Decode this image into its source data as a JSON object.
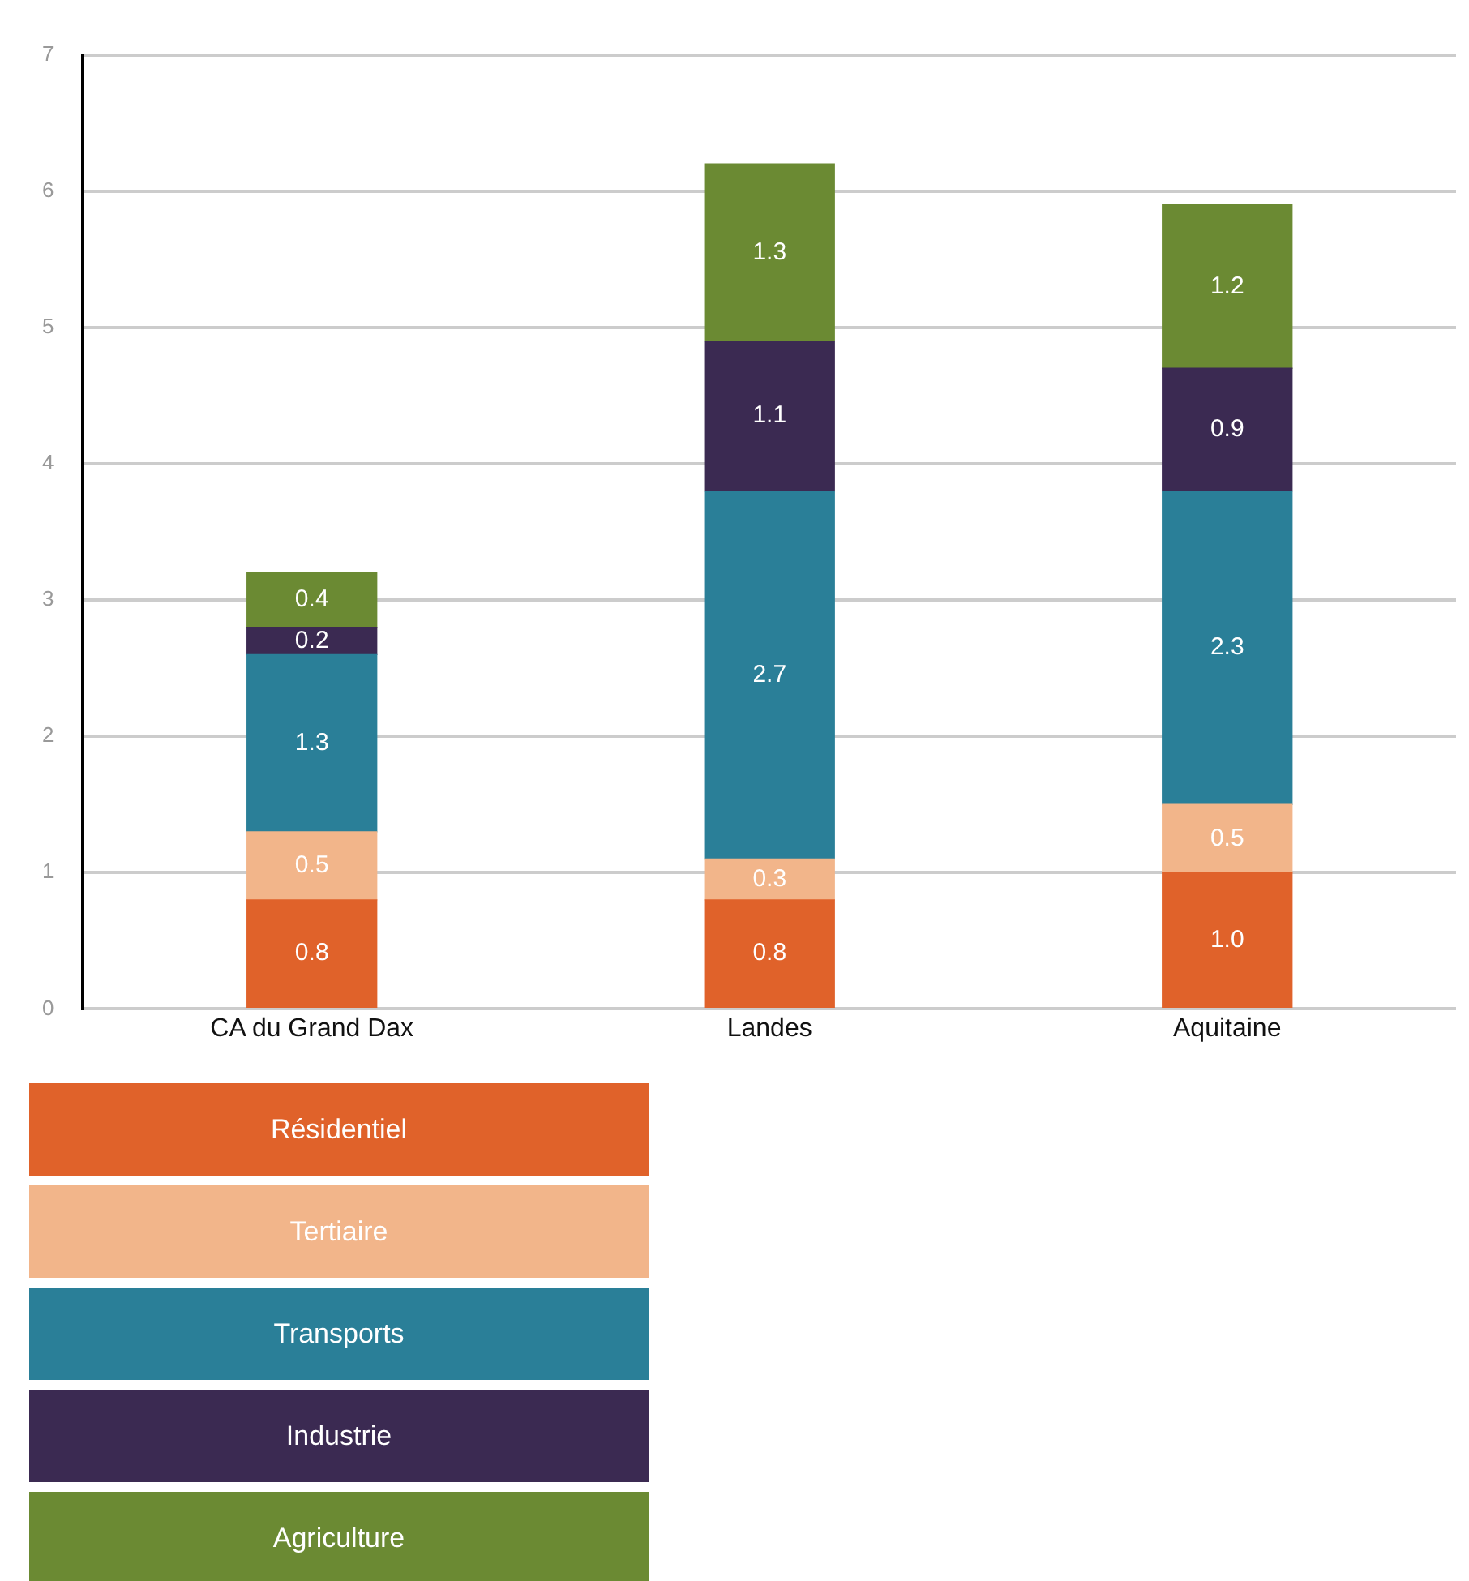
{
  "chart_data": {
    "type": "bar",
    "stacked": true,
    "categories": [
      "CA du Grand Dax",
      "Landes",
      "Aquitaine"
    ],
    "series": [
      {
        "name": "Résidentiel",
        "color": "#e0622a",
        "values": [
          0.8,
          0.8,
          1.0
        ],
        "value_labels": [
          "0.8",
          "0.8",
          "1.0"
        ]
      },
      {
        "name": "Tertiaire",
        "color": "#f2b58a",
        "values": [
          0.5,
          0.3,
          0.5
        ],
        "value_labels": [
          "0.5",
          "0.3",
          "0.5"
        ]
      },
      {
        "name": "Transports",
        "color": "#2a7f98",
        "values": [
          1.3,
          2.7,
          2.3
        ],
        "value_labels": [
          "1.3",
          "2.7",
          "2.3"
        ]
      },
      {
        "name": "Industrie",
        "color": "#3b2a52",
        "values": [
          0.2,
          1.1,
          0.9
        ],
        "value_labels": [
          "0.2",
          "1.1",
          "0.9"
        ]
      },
      {
        "name": "Agriculture",
        "color": "#6b8a33",
        "values": [
          0.4,
          1.3,
          1.2
        ],
        "value_labels": [
          "0.4",
          "1.3",
          "1.2"
        ]
      }
    ],
    "ylim": [
      0,
      7
    ],
    "yticks": [
      0,
      1,
      2,
      3,
      4,
      5,
      6,
      7
    ],
    "grid": "y",
    "legend": "bottom left"
  }
}
